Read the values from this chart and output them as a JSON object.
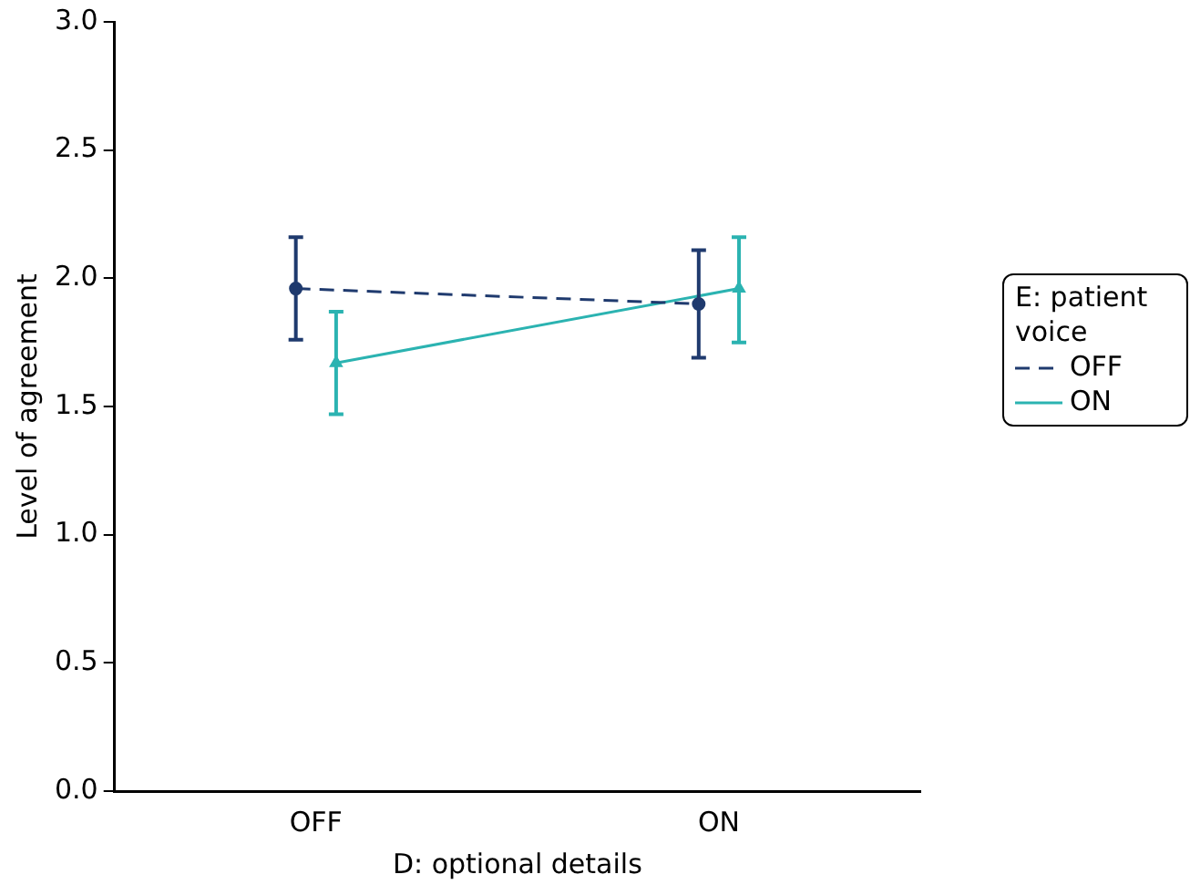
{
  "chart_data": {
    "type": "line",
    "xlabel": "D: optional details",
    "ylabel": "Level of agreement",
    "legend_title": "E: patient voice",
    "categories": [
      "OFF",
      "ON"
    ],
    "series": [
      {
        "name": "OFF",
        "color": "#1f3a6e",
        "values": [
          1.96,
          1.9
        ],
        "errors": [
          [
            1.76,
            2.16
          ],
          [
            1.69,
            2.11
          ]
        ],
        "marker": "circle",
        "line_style": "dashed"
      },
      {
        "name": "ON",
        "color": "#2bb3b1",
        "values": [
          1.67,
          1.96
        ],
        "errors": [
          [
            1.47,
            1.87
          ],
          [
            1.75,
            2.16
          ]
        ],
        "marker": "triangle",
        "line_style": "solid"
      }
    ],
    "ylim": [
      0,
      3
    ],
    "yticks": [
      {
        "value": 0,
        "label": "0.0"
      },
      {
        "value": 0.5,
        "label": "0.5"
      },
      {
        "value": 1,
        "label": "1.0"
      },
      {
        "value": 1.5,
        "label": "1.5"
      },
      {
        "value": 2,
        "label": "2.0"
      },
      {
        "value": 2.5,
        "label": "2.5"
      },
      {
        "value": 3,
        "label": "3.0"
      }
    ],
    "grid": false,
    "legend": "right"
  }
}
